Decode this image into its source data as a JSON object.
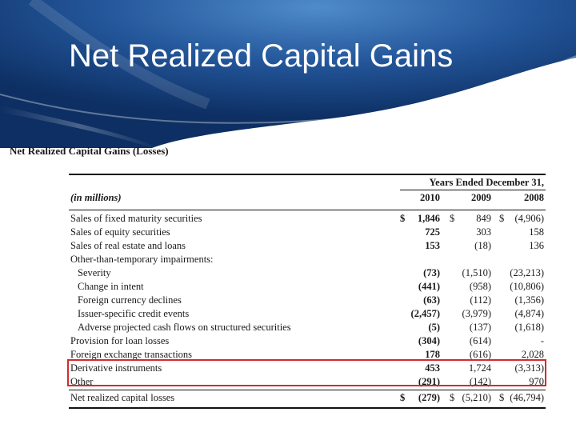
{
  "slide": {
    "title": "Net Realized Capital Gains"
  },
  "document": {
    "title": "Net Realized Capital Gains (Losses)"
  },
  "table": {
    "units_label": "(in millions)",
    "period_header": "Years Ended December 31,",
    "years": [
      "2010",
      "2009",
      "2008"
    ],
    "rows": [
      {
        "label": "Sales of fixed maturity securities",
        "indent": false,
        "dollar": true,
        "values": [
          "1,846",
          "849",
          "(4,906)"
        ]
      },
      {
        "label": "Sales of equity securities",
        "indent": false,
        "dollar": false,
        "values": [
          "725",
          "303",
          "158"
        ]
      },
      {
        "label": "Sales of real estate and loans",
        "indent": false,
        "dollar": false,
        "values": [
          "153",
          "(18)",
          "136"
        ]
      },
      {
        "label": "Other-than-temporary impairments:",
        "indent": false,
        "dollar": false,
        "values": [
          "",
          "",
          ""
        ]
      },
      {
        "label": "Severity",
        "indent": true,
        "dollar": false,
        "values": [
          "(73)",
          "(1,510)",
          "(23,213)"
        ]
      },
      {
        "label": "Change in intent",
        "indent": true,
        "dollar": false,
        "values": [
          "(441)",
          "(958)",
          "(10,806)"
        ]
      },
      {
        "label": "Foreign currency declines",
        "indent": true,
        "dollar": false,
        "values": [
          "(63)",
          "(112)",
          "(1,356)"
        ]
      },
      {
        "label": "Issuer-specific credit events",
        "indent": true,
        "dollar": false,
        "values": [
          "(2,457)",
          "(3,979)",
          "(4,874)"
        ]
      },
      {
        "label": "Adverse projected cash flows on structured securities",
        "indent": true,
        "dollar": false,
        "values": [
          "(5)",
          "(137)",
          "(1,618)"
        ]
      },
      {
        "label": "Provision for loan losses",
        "indent": false,
        "dollar": false,
        "values": [
          "(304)",
          "(614)",
          "-"
        ]
      },
      {
        "label": "Foreign exchange transactions",
        "indent": false,
        "dollar": false,
        "values": [
          "178",
          "(616)",
          "2,028"
        ]
      },
      {
        "label": "Derivative instruments",
        "indent": false,
        "dollar": false,
        "values": [
          "453",
          "1,724",
          "(3,313)"
        ]
      },
      {
        "label": "Other",
        "indent": false,
        "dollar": false,
        "values": [
          "(291)",
          "(142)",
          "970"
        ]
      }
    ],
    "total": {
      "label": "Net realized capital losses",
      "dollar": true,
      "values": [
        "(279)",
        "(5,210)",
        "(46,794)"
      ]
    },
    "currency_symbol": "$"
  },
  "colors": {
    "header_dark": "#0d2f63",
    "header_light": "#3f7cc0",
    "highlight": "#d42a2a"
  }
}
